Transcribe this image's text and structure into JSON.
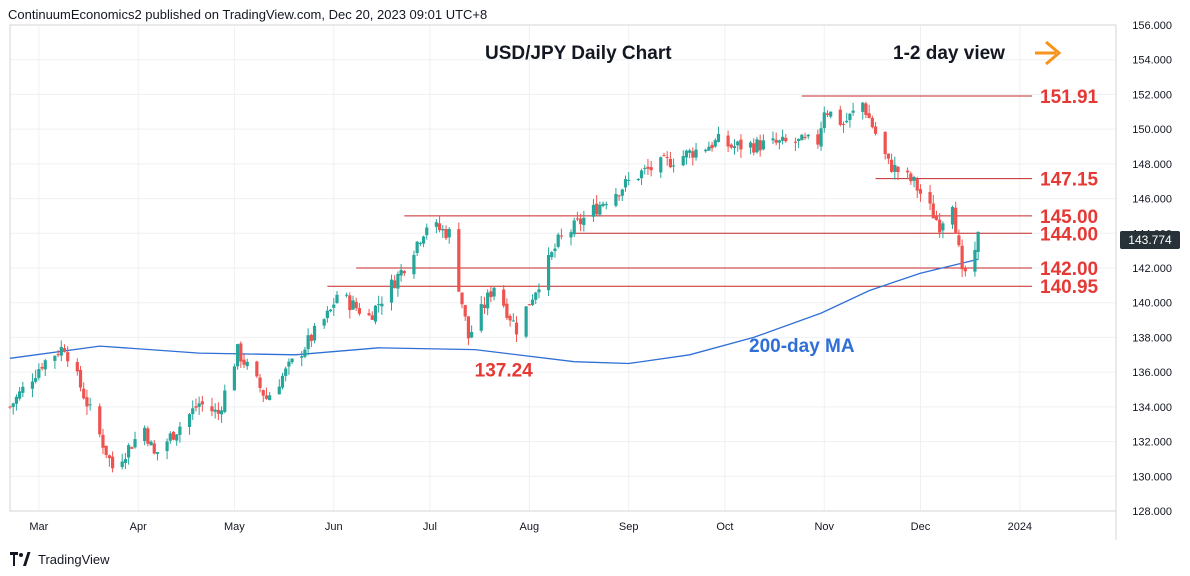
{
  "publisher_line": "ContinuumEconomics2 published on TradingView.com, Dec 20, 2023 09:01 UTC+8",
  "brand": "TradingView",
  "current_price_label": "143.774",
  "colors": {
    "up": "#26a69a",
    "down": "#ef5350",
    "down_text": "#e53935",
    "ma": "#2f6fd6",
    "level_line": "#c62828",
    "arrow": "#f7931a",
    "price_tag": "#263238"
  },
  "icons": [
    "tradingview-logo-icon",
    "arrow-right-icon"
  ],
  "chart_data": {
    "type": "candlestick",
    "title": "USD/JPY Daily Chart",
    "subtitle": "1-2 day view",
    "ylim": [
      128,
      156
    ],
    "x_range": [
      "2023-02-20",
      "2024-01-31"
    ],
    "y_ticks": [
      "128.000",
      "130.000",
      "132.000",
      "134.000",
      "136.000",
      "138.000",
      "140.000",
      "142.000",
      "144.000",
      "146.000",
      "148.000",
      "150.000",
      "152.000",
      "154.000",
      "156.000"
    ],
    "y_tick_values": [
      128,
      130,
      132,
      134,
      136,
      138,
      140,
      142,
      144,
      146,
      148,
      150,
      152,
      154,
      156
    ],
    "x_ticks": [
      {
        "label": "Mar",
        "date": "2023-03-01"
      },
      {
        "label": "Apr",
        "date": "2023-04-01"
      },
      {
        "label": "May",
        "date": "2023-05-01"
      },
      {
        "label": "Jun",
        "date": "2023-06-01"
      },
      {
        "label": "Jul",
        "date": "2023-07-01"
      },
      {
        "label": "Aug",
        "date": "2023-08-01"
      },
      {
        "label": "Sep",
        "date": "2023-09-01"
      },
      {
        "label": "Oct",
        "date": "2023-10-01"
      },
      {
        "label": "Nov",
        "date": "2023-11-01"
      },
      {
        "label": "Dec",
        "date": "2023-12-01"
      },
      {
        "label": "2024",
        "date": "2024-01-01"
      }
    ],
    "levels": [
      {
        "label": "151.91",
        "value": 151.91,
        "from": "2023-10-25"
      },
      {
        "label": "147.15",
        "value": 147.15,
        "from": "2023-11-17"
      },
      {
        "label": "145.00",
        "value": 145.0,
        "from": "2023-06-23"
      },
      {
        "label": "144.00",
        "value": 144.0,
        "from": "2023-08-15"
      },
      {
        "label": "142.00",
        "value": 142.0,
        "from": "2023-06-08"
      },
      {
        "label": "140.95",
        "value": 140.95,
        "from": "2023-05-30"
      }
    ],
    "annotations": [
      {
        "label": "137.24",
        "date": "2023-07-24",
        "value": 136.1
      },
      {
        "label": "200-day MA",
        "date": "2023-10-25",
        "value": 137.5
      }
    ],
    "ma_200": [
      [
        "2023-02-20",
        136.8
      ],
      [
        "2023-03-20",
        137.5
      ],
      [
        "2023-04-20",
        137.1
      ],
      [
        "2023-05-20",
        137.0
      ],
      [
        "2023-06-15",
        137.4
      ],
      [
        "2023-07-15",
        137.3
      ],
      [
        "2023-08-15",
        136.6
      ],
      [
        "2023-09-01",
        136.5
      ],
      [
        "2023-09-20",
        137.0
      ],
      [
        "2023-10-10",
        138.0
      ],
      [
        "2023-10-31",
        139.4
      ],
      [
        "2023-11-15",
        140.7
      ],
      [
        "2023-12-01",
        141.7
      ],
      [
        "2023-12-19",
        142.5
      ]
    ],
    "ohlc_anchors": [
      [
        "2023-02-20",
        134.0
      ],
      [
        "2023-03-02",
        136.5
      ],
      [
        "2023-03-09",
        137.5
      ],
      [
        "2023-03-24",
        130.5
      ],
      [
        "2023-04-03",
        132.8
      ],
      [
        "2023-04-06",
        131.2
      ],
      [
        "2023-04-20",
        134.2
      ],
      [
        "2023-04-26",
        133.6
      ],
      [
        "2023-05-02",
        137.2
      ],
      [
        "2023-05-11",
        134.5
      ],
      [
        "2023-05-31",
        139.5
      ],
      [
        "2023-06-02",
        140.5
      ],
      [
        "2023-06-12",
        139.2
      ],
      [
        "2023-06-22",
        141.8
      ],
      [
        "2023-06-30",
        144.5
      ],
      [
        "2023-07-07",
        144.0
      ],
      [
        "2023-07-13",
        138.0
      ],
      [
        "2023-07-21",
        141.0
      ],
      [
        "2023-07-28",
        138.5
      ],
      [
        "2023-08-10",
        143.5
      ],
      [
        "2023-08-25",
        146.0
      ],
      [
        "2023-09-05",
        147.5
      ],
      [
        "2023-09-29",
        149.3
      ],
      [
        "2023-10-03",
        149.0
      ],
      [
        "2023-10-30",
        149.3
      ],
      [
        "2023-11-01",
        151.2
      ],
      [
        "2023-11-07",
        150.3
      ],
      [
        "2023-11-13",
        151.5
      ],
      [
        "2023-11-21",
        148.0
      ],
      [
        "2023-11-29",
        146.9
      ],
      [
        "2023-12-07",
        144.5
      ],
      [
        "2023-12-11",
        145.9
      ],
      [
        "2023-12-14",
        141.5
      ],
      [
        "2023-12-18",
        142.6
      ],
      [
        "2023-12-19",
        143.77
      ]
    ]
  }
}
